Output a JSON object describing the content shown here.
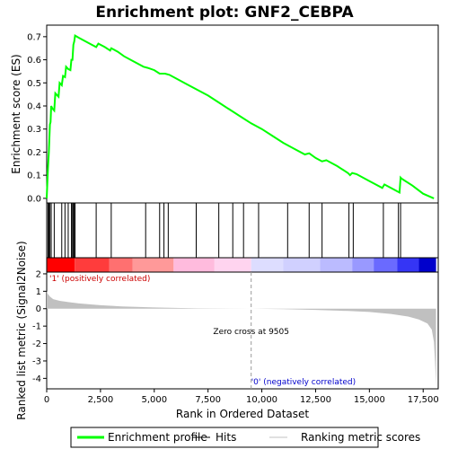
{
  "chart_data": {
    "type": "line",
    "title": "Enrichment plot: GNF2_CEBPA",
    "xlabel": "Rank in Ordered Dataset",
    "x_ticks": [
      0,
      2500,
      5000,
      7500,
      10000,
      12500,
      15000,
      17500
    ],
    "x_tick_labels": [
      "0",
      "2,500",
      "5,000",
      "7,500",
      "10,000",
      "12,500",
      "15,000",
      "17,500"
    ],
    "xlim": [
      0,
      18200
    ],
    "es_panel": {
      "ylabel": "Enrichment score (ES)",
      "ylim": [
        -0.02,
        0.75
      ],
      "y_ticks": [
        0.0,
        0.1,
        0.2,
        0.3,
        0.4,
        0.5,
        0.6,
        0.7
      ],
      "y_tick_labels": [
        "0.0",
        "0.1",
        "0.2",
        "0.3",
        "0.4",
        "0.5",
        "0.6",
        "0.7"
      ],
      "color": "#00ff00",
      "x": [
        0,
        60,
        100,
        120,
        150,
        180,
        210,
        260,
        350,
        400,
        550,
        600,
        700,
        760,
        850,
        900,
        1000,
        1100,
        1150,
        1200,
        1240,
        1280,
        1320,
        1500,
        1800,
        2100,
        2300,
        2400,
        2700,
        2950,
        3000,
        3300,
        3600,
        4000,
        4500,
        4700,
        5000,
        5250,
        5500,
        5700,
        6000,
        6500,
        7000,
        7500,
        8000,
        8500,
        9000,
        9500,
        10000,
        10500,
        11000,
        11500,
        12000,
        12200,
        12500,
        12800,
        13000,
        13500,
        14000,
        14100,
        14200,
        14400,
        15000,
        15600,
        15700,
        16000,
        16300,
        16400,
        16450,
        16500,
        17000,
        17500,
        18000
      ],
      "y": [
        0.0,
        0.13,
        0.2,
        0.25,
        0.32,
        0.33,
        0.4,
        0.39,
        0.38,
        0.455,
        0.44,
        0.5,
        0.49,
        0.53,
        0.525,
        0.57,
        0.56,
        0.555,
        0.6,
        0.6,
        0.665,
        0.68,
        0.705,
        0.695,
        0.68,
        0.665,
        0.655,
        0.67,
        0.655,
        0.64,
        0.65,
        0.635,
        0.615,
        0.595,
        0.57,
        0.565,
        0.555,
        0.54,
        0.54,
        0.535,
        0.52,
        0.495,
        0.47,
        0.445,
        0.415,
        0.385,
        0.355,
        0.325,
        0.3,
        0.27,
        0.24,
        0.215,
        0.19,
        0.195,
        0.175,
        0.16,
        0.165,
        0.14,
        0.11,
        0.1,
        0.11,
        0.105,
        0.075,
        0.045,
        0.06,
        0.045,
        0.03,
        0.025,
        0.09,
        0.085,
        0.055,
        0.02,
        0.0
      ]
    },
    "hits": [
      60,
      100,
      150,
      210,
      350,
      700,
      850,
      1000,
      1150,
      1200,
      1240,
      1280,
      1320,
      2300,
      3000,
      4600,
      5250,
      5450,
      5650,
      6950,
      8000,
      8650,
      9150,
      9850,
      11200,
      12200,
      12800,
      14050,
      14250,
      15650,
      16350,
      16450
    ],
    "metric_panel": {
      "ylabel": "Ranked list metric (Signal2Noise)",
      "ylim": [
        -4.6,
        2.1
      ],
      "y_ticks": [
        2,
        1,
        0,
        -1,
        -2,
        -3,
        -4
      ],
      "y_tick_labels": [
        "2",
        "1",
        "0",
        "-1",
        "-2",
        "-3",
        "-4"
      ],
      "color": "#c0c0c0",
      "x": [
        0,
        50,
        150,
        300,
        600,
        1000,
        1500,
        2500,
        3500,
        5000,
        7000,
        9505,
        11000,
        12500,
        14000,
        15000,
        16000,
        16800,
        17300,
        17700,
        17900,
        18000,
        18050,
        18100
      ],
      "y": [
        1.0,
        0.85,
        0.7,
        0.55,
        0.45,
        0.38,
        0.3,
        0.2,
        0.13,
        0.07,
        0.02,
        0.0,
        -0.03,
        -0.07,
        -0.13,
        -0.19,
        -0.3,
        -0.45,
        -0.62,
        -0.85,
        -1.2,
        -1.9,
        -3.0,
        -4.4
      ]
    },
    "zero_cross_label": "Zero cross at 9505",
    "zero_cross_x": 9505,
    "pos_label": "'1' (positively correlated)",
    "neg_label": "'0' (negatively correlated)",
    "pos_color": "#cc0000",
    "neg_color": "#0000cc",
    "colorbar": [
      {
        "from": 0,
        "to": 1300,
        "color": "#ff0000"
      },
      {
        "from": 1300,
        "to": 2900,
        "color": "#ff3c3c"
      },
      {
        "from": 2900,
        "to": 4000,
        "color": "#ff7070"
      },
      {
        "from": 4000,
        "to": 5900,
        "color": "#ff9999"
      },
      {
        "from": 5900,
        "to": 7800,
        "color": "#ffbbdd"
      },
      {
        "from": 7800,
        "to": 9505,
        "color": "#ffd4ef"
      },
      {
        "from": 9505,
        "to": 11000,
        "color": "#ddddff"
      },
      {
        "from": 11000,
        "to": 12700,
        "color": "#d0d0ff"
      },
      {
        "from": 12700,
        "to": 14200,
        "color": "#bbbbff"
      },
      {
        "from": 14200,
        "to": 15200,
        "color": "#9999ff"
      },
      {
        "from": 15200,
        "to": 16300,
        "color": "#6a6aff"
      },
      {
        "from": 16300,
        "to": 17300,
        "color": "#3535f5"
      },
      {
        "from": 17300,
        "to": 18100,
        "color": "#0000cc"
      }
    ],
    "legend": [
      {
        "label": "Enrichment profile",
        "color": "#00ff00",
        "kind": "thick-line"
      },
      {
        "label": "Hits",
        "color": "#000000",
        "kind": "line"
      },
      {
        "label": "Ranking metric scores",
        "color": "#c0c0c0",
        "kind": "line"
      }
    ],
    "legend_position": "bottom"
  }
}
